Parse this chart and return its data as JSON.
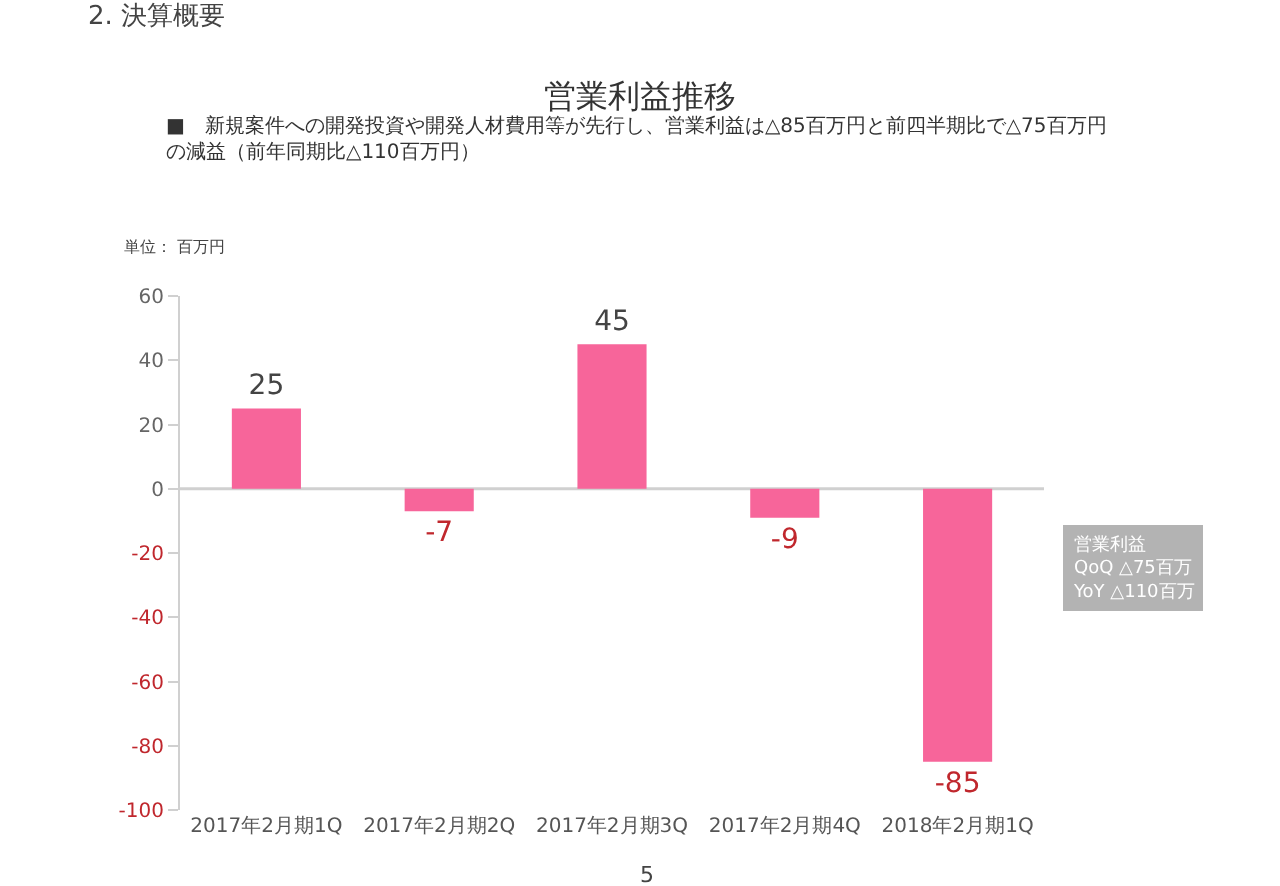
{
  "chart_data": {
    "type": "bar",
    "title": "営業利益推移",
    "subtitle": "■　新規案件への開発投資や開発人材費用等が先行し、営業利益は△85百万円と前四半期比で△75百万円の減益（前年同期比△110百万円）",
    "categories": [
      "2017年2月期1Q",
      "2017年2月期2Q",
      "2017年2月期3Q",
      "2017年2月期4Q",
      "2018年2月期1Q"
    ],
    "values": [
      25,
      -7,
      45,
      -9,
      -85
    ],
    "color": "#f7659a",
    "data_labels": true,
    "ylim": [
      -100,
      60
    ],
    "yticks": [
      -100,
      -80,
      -60,
      -40,
      -20,
      0,
      20,
      40,
      60
    ],
    "grid": false,
    "ref_lines": [
      {
        "axis": "y",
        "value": 0,
        "color": "#d0d0d0"
      }
    ],
    "annotations": [
      "2. 決算概要",
      "単位： 百万円",
      "営業利益\nQoQ △75百万\nYoY △110百万",
      "5"
    ]
  }
}
